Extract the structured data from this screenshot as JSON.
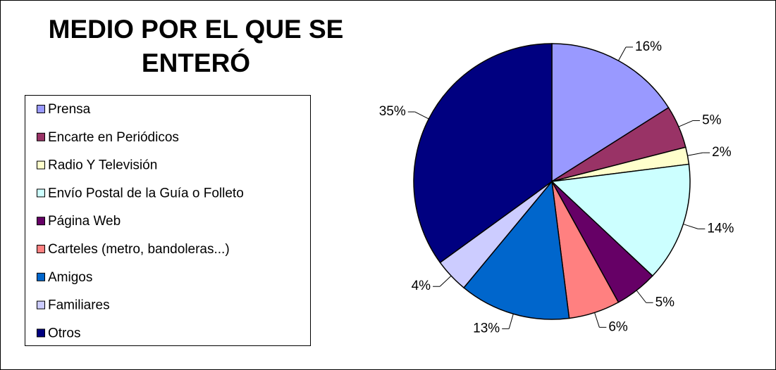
{
  "chart_data": {
    "type": "pie",
    "title": "MEDIO POR EL QUE SE ENTERÓ",
    "categories": [
      "Prensa",
      "Encarte en Periódicos",
      "Radio Y Televisión",
      "Envío Postal de la Guía o Folleto",
      "Página Web",
      "Carteles (metro, bandoleras...)",
      "Amigos",
      "Familiares",
      "Otros"
    ],
    "values": [
      16,
      5,
      2,
      14,
      5,
      6,
      13,
      4,
      35
    ],
    "value_labels": [
      "16%",
      "5%",
      "2%",
      "14%",
      "5%",
      "6%",
      "13%",
      "4%",
      "35%"
    ],
    "colors": [
      "#9999ff",
      "#993366",
      "#ffffcc",
      "#ccffff",
      "#660066",
      "#ff8080",
      "#0066cc",
      "#ccccff",
      "#000080"
    ],
    "legend": "left"
  }
}
